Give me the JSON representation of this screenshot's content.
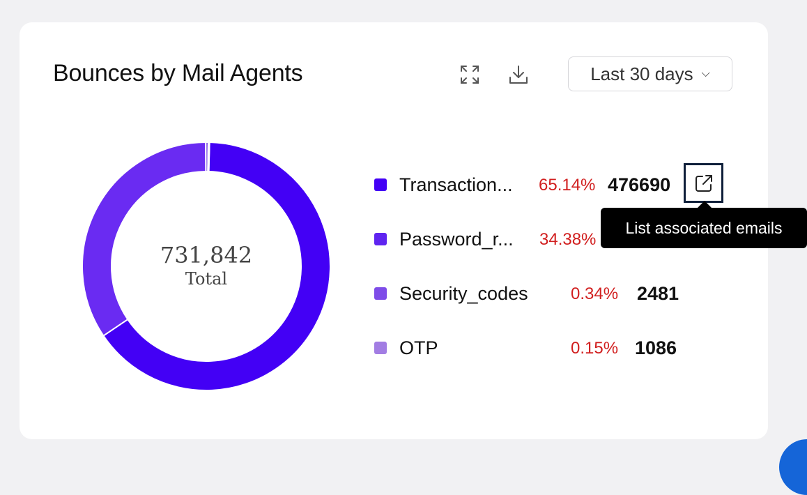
{
  "widget": {
    "title": "Bounces by Mail Agents",
    "range_label": "Last 30 days",
    "expand_icon": "expand-icon",
    "download_icon": "download-icon"
  },
  "donut": {
    "total_value": "731,842",
    "total_label": "Total"
  },
  "legend": [
    {
      "label": "Transaction...",
      "percent": "65.14%",
      "value": "476690",
      "color": "#4300f5"
    },
    {
      "label": "Password_r...",
      "percent": "34.38%",
      "value": "",
      "color": "#5f24f0"
    },
    {
      "label": "Security_codes",
      "percent": "0.34%",
      "value": "2481",
      "color": "#7e4ce8"
    },
    {
      "label": "OTP",
      "percent": "0.15%",
      "value": "1086",
      "color": "#a27de3"
    }
  ],
  "tooltip": {
    "text": "List associated emails"
  },
  "chart_data": {
    "type": "pie",
    "categories": [
      "Transaction...",
      "Password_r...",
      "Security_codes",
      "OTP"
    ],
    "values": [
      476690,
      251585,
      2481,
      1086
    ],
    "percentages": [
      65.14,
      34.38,
      0.34,
      0.15
    ],
    "colors": [
      "#4300f5",
      "#6a2bf2",
      "#7e4ce8",
      "#a27de3"
    ],
    "total": 731842,
    "donut": true
  }
}
